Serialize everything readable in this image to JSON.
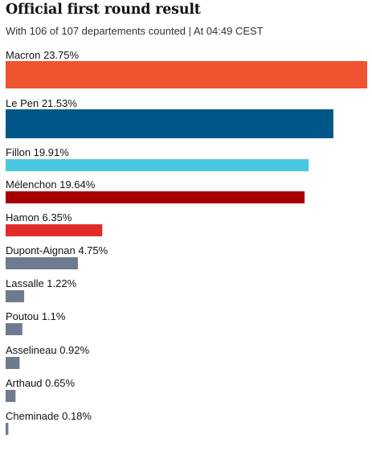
{
  "header": {
    "title": "Official first round result",
    "subtitle": "With 106 of 107 departements counted | At 04:49 CEST"
  },
  "colors": {
    "macron": "#ef5330",
    "le_pen": "#005689",
    "fillon": "#4bc6df",
    "melenchon": "#a60000",
    "hamon": "#e22b2b",
    "other": "#6e7b8f"
  },
  "chart_data": {
    "type": "bar",
    "orientation": "horizontal",
    "unit": "%",
    "categories": [
      "Macron",
      "Le Pen",
      "Fillon",
      "Mélenchon",
      "Hamon",
      "Dupont-Aignan",
      "Lassalle",
      "Poutou",
      "Asselineau",
      "Arthaud",
      "Cheminade"
    ],
    "values": [
      23.75,
      21.53,
      19.91,
      19.64,
      6.35,
      4.75,
      1.22,
      1.1,
      0.92,
      0.65,
      0.18
    ],
    "labels": [
      "Macron 23.75%",
      "Le Pen 21.53%",
      "Fillon 19.91%",
      "Mélenchon 19.64%",
      "Hamon 6.35%",
      "Dupont-Aignan 4.75%",
      "Lassalle 1.22%",
      "Poutou 1.1%",
      "Asselineau 0.92%",
      "Arthaud 0.65%",
      "Cheminade 0.18%"
    ],
    "bar_colors": [
      "#ef5330",
      "#005689",
      "#4bc6df",
      "#a60000",
      "#e22b2b",
      "#6e7b8f",
      "#6e7b8f",
      "#6e7b8f",
      "#6e7b8f",
      "#6e7b8f",
      "#6e7b8f"
    ],
    "xlim": [
      0,
      23.75
    ],
    "title": "Official first round result",
    "subtitle": "With 106 of 107 departements counted | At 04:49 CEST",
    "grid": false,
    "legend": "none"
  }
}
